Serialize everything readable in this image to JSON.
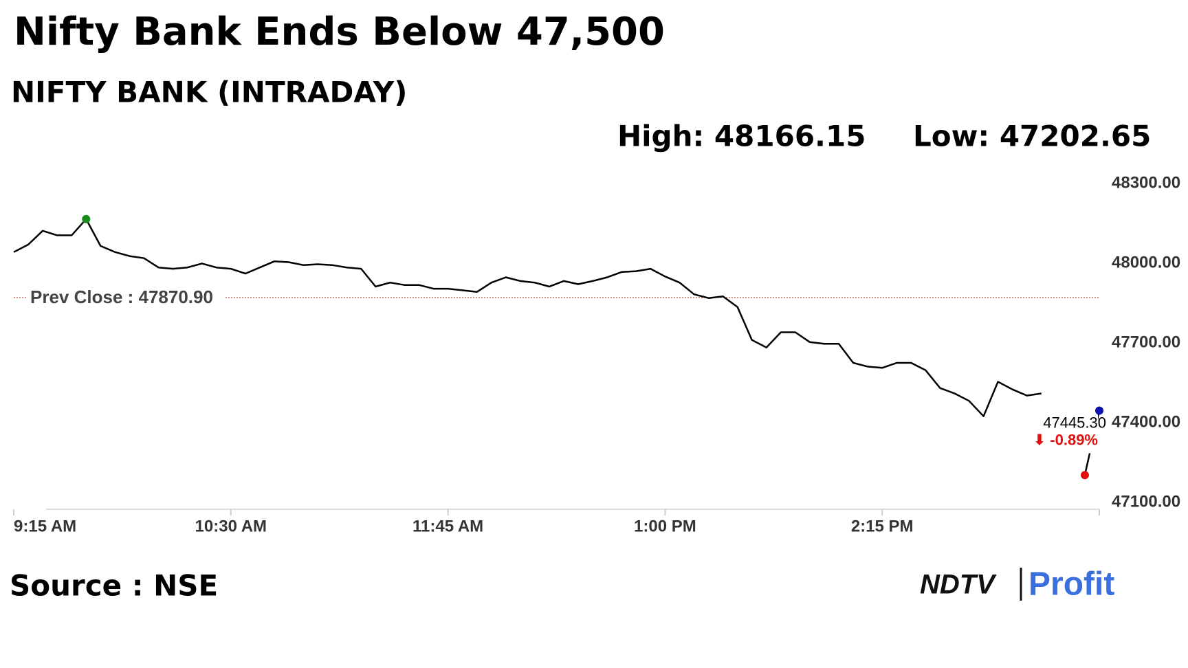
{
  "chart_data": {
    "type": "line",
    "title": "Nifty Bank Ends Below 47,500",
    "subtitle": "NIFTY BANK (INTRADAY)",
    "high": {
      "x": "9:40 AM",
      "value": 48166.15,
      "label": "High: 48166.15",
      "color": "#1a8a1a"
    },
    "low": {
      "x": "3:25 PM",
      "value": 47202.65,
      "label": "Low: 47202.65",
      "color": "#e01010"
    },
    "prev_close": {
      "value": 47870.9,
      "label": "Prev Close : 47870.90",
      "color": "#c0392b"
    },
    "last": {
      "x": "3:30 PM",
      "value": 47445.3,
      "label": "47445.30",
      "change": -0.89,
      "change_label": "⬇ -0.89%",
      "color": "#1010b0",
      "change_color": "#e01010"
    },
    "source": "Source : NSE",
    "logo": {
      "left": "NDTV",
      "right": "Profit"
    },
    "xlim": [
      "9:15 AM",
      "3:30 PM"
    ],
    "xticks": [
      "9:15 AM",
      "10:30 AM",
      "11:45 AM",
      "1:00 PM",
      "2:15 PM"
    ],
    "ylim": [
      47100,
      48300
    ],
    "yticks": [
      {
        "value": 48300,
        "label": "48300.00"
      },
      {
        "value": 48000,
        "label": "48000.00"
      },
      {
        "value": 47700,
        "label": "47700.00"
      },
      {
        "value": 47400,
        "label": "47400.00"
      },
      {
        "value": 47100,
        "label": "47100.00"
      }
    ],
    "x": [
      "9:15 AM",
      "9:20 AM",
      "9:25 AM",
      "9:30 AM",
      "9:35 AM",
      "9:40 AM",
      "9:45 AM",
      "9:50 AM",
      "9:55 AM",
      "10:00 AM",
      "10:05 AM",
      "10:10 AM",
      "10:15 AM",
      "10:20 AM",
      "10:25 AM",
      "10:30 AM",
      "10:35 AM",
      "10:40 AM",
      "10:45 AM",
      "10:50 AM",
      "10:55 AM",
      "11:00 AM",
      "11:05 AM",
      "11:10 AM",
      "11:15 AM",
      "11:20 AM",
      "11:25 AM",
      "11:30 AM",
      "11:35 AM",
      "11:40 AM",
      "11:45 AM",
      "11:50 AM",
      "11:55 AM",
      "12:00 PM",
      "12:05 PM",
      "12:10 PM",
      "12:15 PM",
      "12:20 PM",
      "12:25 PM",
      "12:30 PM",
      "12:35 PM",
      "12:40 PM",
      "12:45 PM",
      "12:50 PM",
      "12:55 PM",
      "1:00 PM",
      "1:05 PM",
      "1:10 PM",
      "1:15 PM",
      "1:20 PM",
      "1:25 PM",
      "1:30 PM",
      "1:35 PM",
      "1:40 PM",
      "1:45 PM",
      "1:50 PM",
      "1:55 PM",
      "2:00 PM",
      "2:05 PM",
      "2:10 PM",
      "2:15 PM",
      "2:20 PM",
      "2:25 PM",
      "2:30 PM",
      "2:35 PM",
      "2:40 PM",
      "2:45 PM",
      "2:50 PM",
      "2:55 PM",
      "3:00 PM",
      "3:05 PM",
      "3:10 PM",
      "3:15 PM",
      "3:20 PM",
      "3:25 PM",
      "3:30 PM"
    ],
    "series": [
      {
        "name": "NIFTY BANK",
        "color": "#000000",
        "values": [
          48042,
          48070,
          48122,
          48105,
          48105,
          48166.15,
          48065,
          48042,
          48027,
          48019,
          47984,
          47979,
          47984,
          47999,
          47984,
          47979,
          47961,
          47984,
          48007,
          48004,
          47993,
          47996,
          47993,
          47984,
          47979,
          47912,
          47927,
          47918,
          47918,
          47904,
          47904,
          47898,
          47892,
          47927,
          47947,
          47933,
          47927,
          47912,
          47933,
          47921,
          47933,
          47947,
          47967,
          47970,
          47979,
          47950,
          47927,
          47883,
          47869,
          47875,
          47835,
          47711,
          47683,
          47740,
          47740,
          47703,
          47697,
          47697,
          47625,
          47611,
          47606,
          47625,
          47625,
          47597,
          47530,
          47510,
          47482,
          47424,
          47554,
          47525,
          47502,
          47510,
          null,
          null,
          47202.65,
          47445.3
        ]
      }
    ]
  }
}
